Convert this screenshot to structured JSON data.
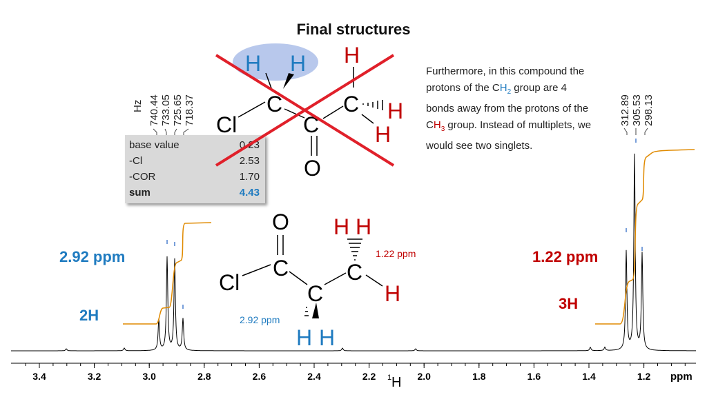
{
  "title": "Final structures",
  "note": {
    "part1": "Furthermore, in this compound the protons of the C",
    "h2_h": "H",
    "h2_sub": "2",
    "part2": " group are 4 bonds away from the protons of the C",
    "h3_h": "H",
    "h3_sub": "3",
    "part3": " group. Instead of multiplets, we would see two singlets."
  },
  "calc_table": {
    "rows": [
      {
        "label": "base value",
        "value": "0.23"
      },
      {
        "label": "-Cl",
        "value": "2.53"
      },
      {
        "label": "-COR",
        "value": "1.70"
      }
    ],
    "sum": {
      "label": "sum",
      "value": "4.43"
    }
  },
  "peak_labels": {
    "left": {
      "unit": "Hz",
      "values": [
        "740.44",
        "733.05",
        "725.65",
        "718.37"
      ]
    },
    "right": {
      "values": [
        "312.89",
        "305.53",
        "298.13"
      ]
    }
  },
  "left_group": {
    "shift": "2.92 ppm",
    "integration": "2H"
  },
  "right_group": {
    "shift": "1.22 ppm",
    "integration": "3H"
  },
  "struct_crossed": {
    "atoms": {
      "cl": "Cl",
      "c1": "C",
      "c2": "C",
      "c3": "C",
      "o": "O",
      "h_top1": "H",
      "h_top2": "H",
      "h_top3": "H",
      "h_right1": "H",
      "h_right2": "H"
    }
  },
  "struct_final": {
    "atoms": {
      "cl": "Cl",
      "c_carbonyl": "C",
      "c_ch2": "C",
      "c_ch3": "C",
      "o": "O",
      "h_ch3_a": "H",
      "h_ch3_b": "H",
      "h_ch3_c": "H",
      "h_ch2_a": "H",
      "h_ch2_b": "H"
    },
    "ch3_shift": "1.22 ppm",
    "ch2_shift": "2.92 ppm"
  },
  "axis": {
    "ticks": [
      "3.4",
      "3.2",
      "3.0",
      "2.8",
      "2.6",
      "2.4",
      "2.2",
      "2.0",
      "1.8",
      "1.6",
      "1.4",
      "1.2"
    ],
    "unit": "ppm",
    "nucleus_sup": "1",
    "nucleus": "H"
  },
  "colors": {
    "blue": "#1f7bc0",
    "red": "#c00000",
    "integral": "#e08a00",
    "spectrum": "#000000",
    "highlight": "#b8c8ec"
  }
}
